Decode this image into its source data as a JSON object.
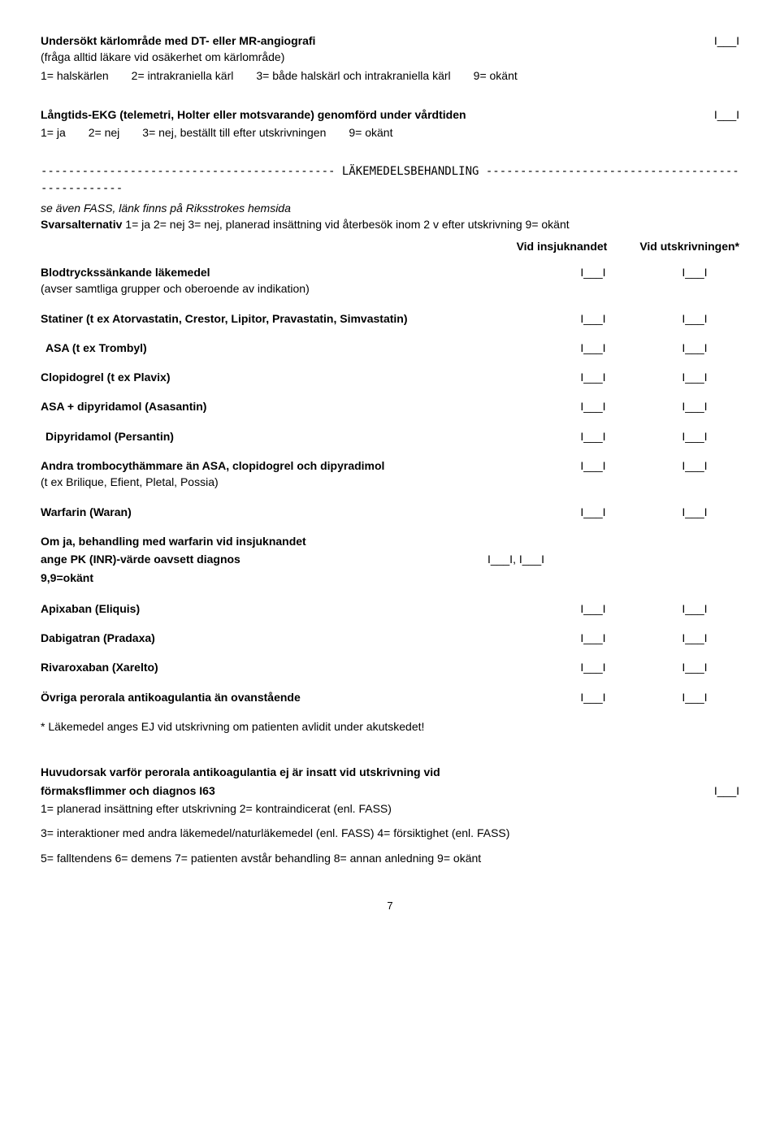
{
  "q1": {
    "title": "Undersökt kärlområde med DT- eller MR-angiografi",
    "sub": "(fråga alltid läkare vid osäkerhet om kärlområde)",
    "opts": [
      "1= halskärlen",
      "2= intrakraniella kärl",
      "3= både halskärl och intrakraniella kärl",
      "9= okänt"
    ],
    "blank": "I___I"
  },
  "q2": {
    "title": "Långtids-EKG (telemetri, Holter eller motsvarande) genomförd under vårdtiden",
    "opts": [
      "1= ja",
      "2= nej",
      "3= nej, beställt till efter utskrivningen",
      "9= okänt"
    ],
    "blank": "I___I"
  },
  "divider": "------------------------------------------- LÄKEMEDELSBEHANDLING -------------------------------------------------",
  "fass_note": "se även FASS, länk finns på Riksstrokes hemsida",
  "svars": {
    "prefix": "Svarsalternativ",
    "opts": "1= ja  2= nej  3= nej, planerad insättning vid återbesök inom 2 v efter utskrivning 9= okänt"
  },
  "col1": "Vid insjuknandet",
  "col2": "Vid utskrivningen*",
  "meds": [
    {
      "label": "Blodtryckssänkande läkemedel",
      "sub": "(avser samtliga grupper och oberoende av indikation)",
      "v1": "I___I",
      "v2": "I___I"
    },
    {
      "label": "Statiner (t ex Atorvastatin, Crestor, Lipitor, Pravastatin, Simvastatin)",
      "v1": "I___I",
      "v2": "I___I"
    },
    {
      "label": "ASA (t ex Trombyl)",
      "indent": true,
      "v1": "I___I",
      "v2": "I___I"
    },
    {
      "label": "Clopidogrel (t ex Plavix)",
      "v1": "I___I",
      "v2": "I___I"
    },
    {
      "label": "ASA + dipyridamol (Asasantin)",
      "v1": "I___I",
      "v2": "I___I"
    },
    {
      "label": "Dipyridamol (Persantin)",
      "indent": true,
      "v1": "I___I",
      "v2": "I___I"
    },
    {
      "label": "Andra trombocythämmare än ASA, clopidogrel och dipyradimol",
      "sub": "(t ex  Brilique, Efient, Pletal, Possia)",
      "v1": "I___I",
      "v2": "I___I"
    },
    {
      "label": "Warfarin (Waran)",
      "v1": "I___I",
      "v2": "I___I"
    }
  ],
  "pk": {
    "line1": "Om ja, behandling med warfarin vid insjuknandet",
    "line2": "ange PK (INR)-värde oavsett diagnos",
    "blank": "I___I, I___I",
    "line3": "9,9=okänt"
  },
  "meds2": [
    {
      "label": "Apixaban (Eliquis)",
      "v1": "I___I",
      "v2": "I___I"
    },
    {
      "label": "Dabigatran (Pradaxa)",
      "v1": "I___I",
      "v2": "I___I"
    },
    {
      "label": "Rivaroxaban (Xarelto)",
      "v1": "I___I",
      "v2": "I___I"
    },
    {
      "label": "Övriga perorala antikoagulantia än ovanstående",
      "v1": "I___I",
      "v2": "I___I"
    }
  ],
  "star_note": "* Läkemedel anges EJ vid utskrivning om patienten avlidit under akutskedet!",
  "huvudorsak": {
    "line1": "Huvudorsak varför perorala antikoagulantia ej är insatt vid utskrivning vid",
    "line2": "förmaksflimmer och diagnos I63",
    "blank": "I___I",
    "opts": [
      "1= planerad insättning efter utskrivning   2= kontraindicerat (enl. FASS)",
      "3= interaktioner med andra läkemedel/naturläkemedel (enl. FASS)   4= försiktighet (enl. FASS)",
      "5= falltendens  6= demens  7= patienten avstår behandling  8= annan anledning     9= okänt"
    ]
  },
  "page": "7"
}
